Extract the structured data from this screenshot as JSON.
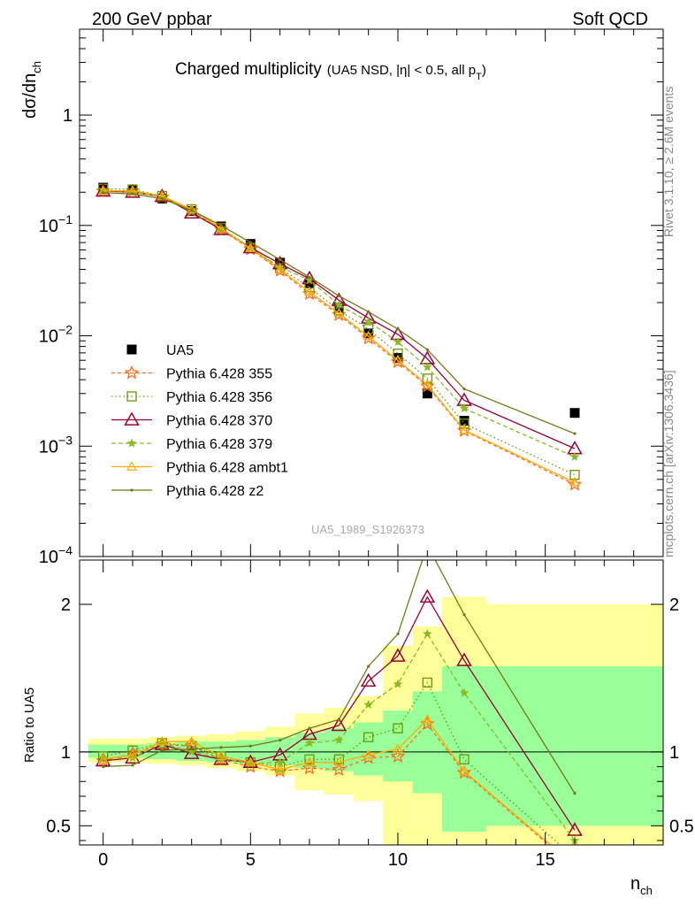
{
  "header": {
    "left": "200 GeV ppbar",
    "right": "Soft QCD"
  },
  "side_text": {
    "rivet": "Rivet 3.1.10, ≥ 2.6M events",
    "source": "mcplots.cern.ch [arXiv:1306.3436]"
  },
  "watermark": "UA5_1989_S1926373",
  "chart_data": [
    {
      "type": "scatter",
      "panel": "main",
      "title_main": "Charged multiplicity",
      "title_sub": "(UA5 NSD, |η| < 0.5, all p",
      "title_sub_subscript": "T",
      "title_sub_end": ")",
      "ylabel": "dσ/dn",
      "ylabel_subscript": "ch",
      "yscale": "log",
      "ylim": [
        0.0001,
        6
      ],
      "xlim": [
        -0.8,
        19
      ],
      "y_ticks": [
        {
          "value": 1,
          "label": "1"
        },
        {
          "value": 0.1,
          "label": "10",
          "exp": "−1"
        },
        {
          "value": 0.01,
          "label": "10",
          "exp": "−2"
        },
        {
          "value": 0.001,
          "label": "10",
          "exp": "−3"
        },
        {
          "value": 0.0001,
          "label": "10",
          "exp": "−4"
        }
      ],
      "x": [
        0,
        1,
        2,
        3,
        4,
        5,
        6,
        7,
        8,
        9,
        10,
        11,
        12.25,
        16
      ],
      "series": [
        {
          "name": "UA5",
          "style": "data",
          "color": "#000000",
          "values": [
            0.22,
            0.21,
            0.175,
            0.135,
            0.098,
            0.068,
            0.046,
            0.03,
            0.018,
            0.0105,
            0.0063,
            0.003,
            0.0017,
            0.002
          ]
        },
        {
          "name": "Pythia 6.428 355",
          "style": "star",
          "dash": "4,3",
          "color": "#ff6a1a",
          "values": [
            0.205,
            0.205,
            0.18,
            0.136,
            0.092,
            0.061,
            0.039,
            0.024,
            0.0155,
            0.0095,
            0.0058,
            0.0035,
            0.00138,
            0.00045
          ]
        },
        {
          "name": "Pythia 6.428 356",
          "style": "square",
          "dash": "1.5,3",
          "color": "#669900",
          "values": [
            0.215,
            0.212,
            0.185,
            0.14,
            0.095,
            0.063,
            0.041,
            0.0275,
            0.017,
            0.0115,
            0.0069,
            0.0041,
            0.0016,
            0.00055
          ]
        },
        {
          "name": "Pythia 6.428 370",
          "style": "triangle",
          "dash": "",
          "color": "#990033",
          "values": [
            0.205,
            0.2,
            0.183,
            0.13,
            0.092,
            0.063,
            0.045,
            0.033,
            0.021,
            0.0145,
            0.0103,
            0.0062,
            0.0026,
            0.00095
          ]
        },
        {
          "name": "Pythia 6.428 379",
          "style": "smallstar",
          "dash": "5,3",
          "color": "#88bb22",
          "values": [
            0.21,
            0.2,
            0.183,
            0.135,
            0.094,
            0.062,
            0.042,
            0.032,
            0.019,
            0.0135,
            0.0088,
            0.0052,
            0.0022,
            0.0008
          ]
        },
        {
          "name": "Pythia 6.428 ambt1",
          "style": "opentri",
          "dash": "",
          "color": "#ffaa00",
          "values": [
            0.205,
            0.206,
            0.185,
            0.14,
            0.094,
            0.062,
            0.04,
            0.025,
            0.016,
            0.0099,
            0.006,
            0.0036,
            0.0014,
            0.00047
          ]
        },
        {
          "name": "Pythia 6.428 z2",
          "style": "dot",
          "dash": "",
          "color": "#777711",
          "values": [
            0.198,
            0.193,
            0.175,
            0.137,
            0.1,
            0.07,
            0.049,
            0.034,
            0.023,
            0.0165,
            0.0115,
            0.0075,
            0.0033,
            0.0013
          ]
        }
      ]
    },
    {
      "type": "line",
      "panel": "ratio",
      "ylabel": "Ratio to UA5",
      "xlabel": "n",
      "xlabel_subscript": "ch",
      "ylim": [
        0.37,
        2.3
      ],
      "xlim": [
        -0.8,
        19
      ],
      "x_ticks": [
        0,
        5,
        10,
        15
      ],
      "y_ticks": [
        0.5,
        1,
        2
      ],
      "bands": {
        "edges": [
          -0.5,
          0.5,
          1.5,
          2.5,
          3.5,
          4.5,
          5.5,
          6.5,
          7.5,
          8.5,
          9.5,
          10.5,
          11.5,
          13,
          19
        ],
        "stat_lo": [
          0.96,
          0.96,
          0.95,
          0.94,
          0.93,
          0.92,
          0.91,
          0.89,
          0.87,
          0.84,
          0.8,
          0.72,
          0.46,
          0.5
        ],
        "stat_hi": [
          1.05,
          1.05,
          1.06,
          1.07,
          1.07,
          1.08,
          1.1,
          1.13,
          1.16,
          1.2,
          1.28,
          1.41,
          1.58,
          1.58
        ],
        "tot_lo": [
          0.93,
          0.93,
          0.92,
          0.91,
          0.89,
          0.87,
          0.84,
          0.74,
          0.71,
          0.67,
          0.36,
          0.36,
          0.36,
          0.36
        ],
        "tot_hi": [
          1.09,
          1.09,
          1.1,
          1.11,
          1.12,
          1.14,
          1.17,
          1.26,
          1.3,
          1.38,
          1.72,
          1.85,
          2.05,
          2.0
        ]
      },
      "series": [
        {
          "name": "Pythia 6.428 355",
          "style": "star",
          "dash": "4,3",
          "color": "#ff6a1a",
          "values": [
            0.94,
            0.99,
            1.05,
            1.04,
            0.95,
            0.9,
            0.87,
            0.89,
            0.88,
            0.96,
            0.97,
            1.19,
            0.86,
            0.22
          ]
        },
        {
          "name": "Pythia 6.428 356",
          "style": "square",
          "dash": "1.5,3",
          "color": "#669900",
          "values": [
            0.97,
            1.01,
            1.06,
            1.04,
            0.97,
            0.93,
            0.9,
            0.95,
            0.95,
            1.1,
            1.16,
            1.47,
            0.95,
            0.28
          ]
        },
        {
          "name": "Pythia 6.428 370",
          "style": "triangle",
          "dash": "",
          "color": "#990033",
          "values": [
            0.94,
            0.96,
            1.05,
            0.99,
            0.95,
            0.93,
            0.98,
            1.12,
            1.18,
            1.48,
            1.65,
            2.05,
            1.62,
            0.47
          ]
        },
        {
          "name": "Pythia 6.428 379",
          "style": "smallstar",
          "dash": "5,3",
          "color": "#88bb22",
          "values": [
            0.96,
            0.96,
            1.06,
            1.0,
            0.96,
            0.92,
            0.93,
            1.06,
            1.08,
            1.32,
            1.46,
            1.8,
            1.4,
            0.4
          ]
        },
        {
          "name": "Pythia 6.428 ambt1",
          "style": "opentri",
          "dash": "",
          "color": "#ffaa00",
          "values": [
            0.95,
            0.98,
            1.07,
            1.07,
            0.97,
            0.93,
            0.88,
            0.93,
            0.93,
            0.98,
            1.02,
            1.22,
            0.87,
            0.23
          ]
        },
        {
          "name": "Pythia 6.428 z2",
          "style": "dot",
          "dash": "",
          "color": "#777711",
          "values": [
            0.9,
            0.91,
            1.01,
            1.02,
            1.03,
            1.04,
            1.08,
            1.16,
            1.22,
            1.58,
            1.8,
            2.4,
            1.93,
            0.72
          ]
        }
      ]
    }
  ]
}
